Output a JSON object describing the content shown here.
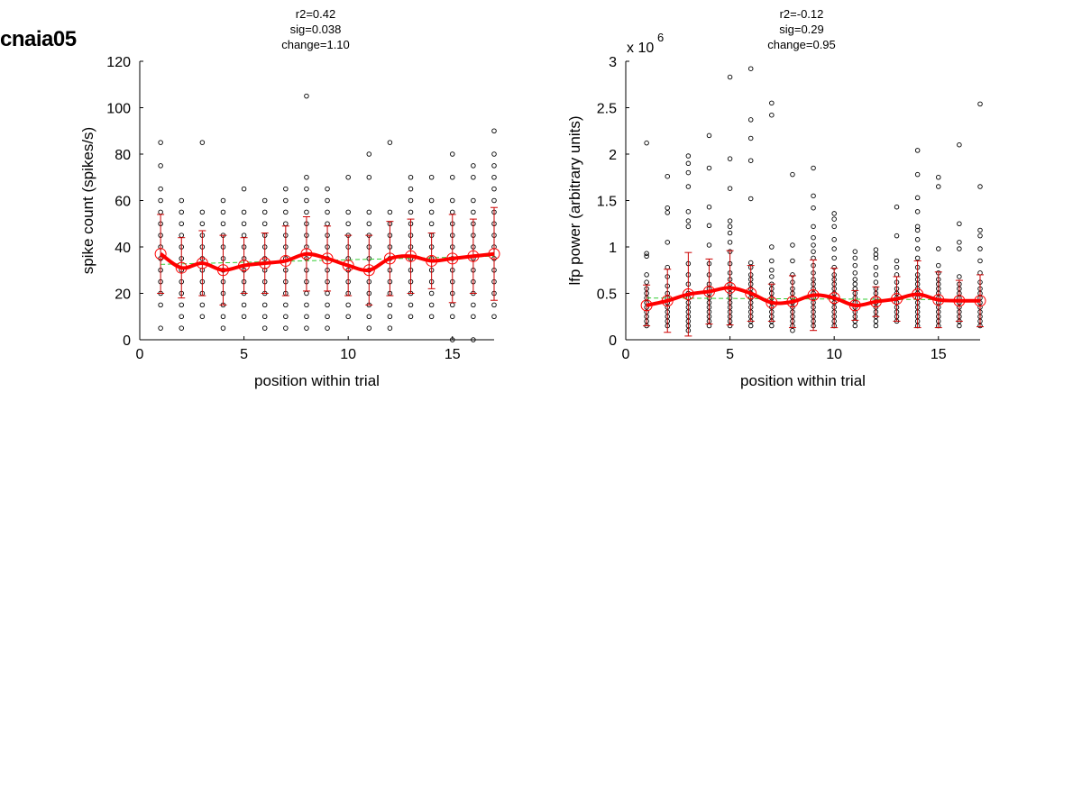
{
  "figure": {
    "label": "cnaia05"
  },
  "chart_data": [
    {
      "type": "scatter",
      "title_lines": [
        "r2=0.42",
        "sig=0.038",
        "change=1.10"
      ],
      "xlabel": "position within trial",
      "ylabel": "spike count (spikes/s)",
      "xlim": [
        0,
        17
      ],
      "ylim": [
        0,
        120
      ],
      "xticks": [
        0,
        5,
        10,
        15
      ],
      "yticks": [
        0,
        20,
        40,
        60,
        80,
        100,
        120
      ],
      "xtick_labels": [
        "0",
        "5",
        "10",
        "15"
      ],
      "ytick_labels": [
        "0",
        "20",
        "40",
        "60",
        "80",
        "100",
        "120"
      ],
      "exponent_label": "",
      "grid": false,
      "colors": {
        "points": "#000000",
        "mean": "#ff0000",
        "errorbar": "#cc0000",
        "fit": "#33cc33"
      },
      "scatter": [
        {
          "x": 1,
          "ys": [
            5,
            15,
            20,
            25,
            30,
            35,
            40,
            45,
            50,
            55,
            60,
            65,
            75,
            85
          ]
        },
        {
          "x": 2,
          "ys": [
            5,
            10,
            15,
            20,
            25,
            30,
            35,
            40,
            45,
            50,
            55,
            60
          ]
        },
        {
          "x": 3,
          "ys": [
            10,
            15,
            20,
            25,
            30,
            35,
            40,
            45,
            50,
            55,
            85
          ]
        },
        {
          "x": 4,
          "ys": [
            5,
            10,
            15,
            20,
            25,
            30,
            35,
            40,
            45,
            50,
            55,
            60
          ]
        },
        {
          "x": 5,
          "ys": [
            10,
            15,
            20,
            25,
            30,
            35,
            40,
            45,
            50,
            55,
            65
          ]
        },
        {
          "x": 6,
          "ys": [
            5,
            10,
            15,
            20,
            25,
            30,
            35,
            40,
            45,
            50,
            55,
            60
          ]
        },
        {
          "x": 7,
          "ys": [
            5,
            10,
            15,
            20,
            25,
            30,
            35,
            40,
            45,
            50,
            55,
            60,
            65
          ]
        },
        {
          "x": 8,
          "ys": [
            5,
            10,
            15,
            20,
            25,
            30,
            35,
            40,
            45,
            50,
            55,
            60,
            65,
            70,
            105
          ]
        },
        {
          "x": 9,
          "ys": [
            5,
            10,
            15,
            20,
            25,
            30,
            35,
            40,
            45,
            50,
            55,
            60,
            65
          ]
        },
        {
          "x": 10,
          "ys": [
            10,
            15,
            20,
            25,
            30,
            35,
            40,
            45,
            50,
            55,
            70
          ]
        },
        {
          "x": 11,
          "ys": [
            5,
            10,
            15,
            20,
            25,
            30,
            35,
            40,
            45,
            50,
            55,
            70,
            80
          ]
        },
        {
          "x": 12,
          "ys": [
            5,
            10,
            15,
            20,
            25,
            30,
            35,
            40,
            45,
            50,
            55,
            85
          ]
        },
        {
          "x": 13,
          "ys": [
            10,
            15,
            20,
            25,
            30,
            35,
            40,
            45,
            50,
            55,
            60,
            65,
            70
          ]
        },
        {
          "x": 14,
          "ys": [
            10,
            15,
            20,
            25,
            30,
            35,
            40,
            45,
            50,
            55,
            60,
            70
          ]
        },
        {
          "x": 15,
          "ys": [
            0,
            10,
            15,
            20,
            25,
            30,
            35,
            40,
            45,
            50,
            55,
            60,
            70,
            80
          ]
        },
        {
          "x": 16,
          "ys": [
            0,
            10,
            15,
            20,
            25,
            30,
            35,
            40,
            45,
            50,
            55,
            60,
            70,
            75
          ]
        },
        {
          "x": 17,
          "ys": [
            10,
            15,
            20,
            25,
            30,
            35,
            40,
            45,
            50,
            55,
            60,
            65,
            70,
            75,
            80,
            90
          ]
        }
      ],
      "mean": {
        "x": [
          1,
          2,
          3,
          4,
          5,
          6,
          7,
          8,
          9,
          10,
          11,
          12,
          13,
          14,
          15,
          16,
          17
        ],
        "y": [
          37,
          31,
          33,
          30,
          32,
          33,
          34,
          37,
          35,
          32,
          30,
          35,
          36,
          34,
          35,
          36,
          37
        ],
        "err": [
          17,
          13,
          14,
          15,
          12,
          13,
          15,
          16,
          14,
          13,
          15,
          16,
          16,
          12,
          19,
          16,
          20
        ]
      },
      "fit": {
        "x": [
          1,
          17
        ],
        "y": [
          32.5,
          36
        ]
      }
    },
    {
      "type": "scatter",
      "title_lines": [
        "r2=-0.12",
        "sig=0.29",
        "change=0.95"
      ],
      "xlabel": "position within trial",
      "ylabel": "lfp power (arbitrary units)",
      "xlim": [
        0,
        17
      ],
      "ylim": [
        0,
        3
      ],
      "xticks": [
        0,
        5,
        10,
        15
      ],
      "yticks": [
        0,
        0.5,
        1,
        1.5,
        2,
        2.5,
        3
      ],
      "xtick_labels": [
        "0",
        "5",
        "10",
        "15"
      ],
      "ytick_labels": [
        "0",
        "0.5",
        "1",
        "1.5",
        "2",
        "2.5",
        "3"
      ],
      "exponent_label": "x 10",
      "exponent_power": "6",
      "grid": false,
      "colors": {
        "points": "#000000",
        "mean": "#ff0000",
        "errorbar": "#cc0000",
        "fit": "#33cc33"
      },
      "scatter": [
        {
          "x": 1,
          "ys": [
            0.15,
            0.2,
            0.25,
            0.3,
            0.35,
            0.4,
            0.45,
            0.5,
            0.55,
            0.62,
            0.7,
            0.9,
            0.93,
            2.12
          ]
        },
        {
          "x": 2,
          "ys": [
            0.15,
            0.2,
            0.25,
            0.3,
            0.35,
            0.4,
            0.45,
            0.5,
            0.58,
            0.68,
            0.78,
            1.05,
            1.37,
            1.42,
            1.76
          ]
        },
        {
          "x": 3,
          "ys": [
            0.1,
            0.15,
            0.2,
            0.25,
            0.3,
            0.35,
            0.4,
            0.45,
            0.5,
            0.6,
            0.7,
            0.82,
            1.22,
            1.28,
            1.38,
            1.65,
            1.8,
            1.9,
            1.98
          ]
        },
        {
          "x": 4,
          "ys": [
            0.15,
            0.2,
            0.25,
            0.3,
            0.35,
            0.4,
            0.45,
            0.5,
            0.55,
            0.6,
            0.7,
            0.82,
            1.02,
            1.23,
            1.43,
            1.85,
            2.2
          ]
        },
        {
          "x": 5,
          "ys": [
            0.15,
            0.2,
            0.25,
            0.3,
            0.35,
            0.4,
            0.45,
            0.5,
            0.55,
            0.6,
            0.65,
            0.72,
            0.82,
            0.95,
            1.05,
            1.15,
            1.22,
            1.28,
            1.63,
            1.95,
            2.83
          ]
        },
        {
          "x": 6,
          "ys": [
            0.15,
            0.2,
            0.25,
            0.3,
            0.35,
            0.4,
            0.45,
            0.5,
            0.55,
            0.6,
            0.65,
            0.7,
            0.78,
            0.83,
            1.52,
            1.93,
            2.17,
            2.37,
            2.92
          ]
        },
        {
          "x": 7,
          "ys": [
            0.15,
            0.2,
            0.25,
            0.3,
            0.35,
            0.4,
            0.45,
            0.5,
            0.55,
            0.6,
            0.68,
            0.75,
            0.85,
            1.0,
            2.42,
            2.55
          ]
        },
        {
          "x": 8,
          "ys": [
            0.1,
            0.15,
            0.2,
            0.25,
            0.3,
            0.35,
            0.4,
            0.45,
            0.5,
            0.55,
            0.62,
            0.7,
            0.85,
            1.02,
            1.78
          ]
        },
        {
          "x": 9,
          "ys": [
            0.15,
            0.2,
            0.25,
            0.3,
            0.35,
            0.4,
            0.45,
            0.5,
            0.55,
            0.6,
            0.65,
            0.72,
            0.8,
            0.88,
            0.95,
            1.02,
            1.1,
            1.22,
            1.42,
            1.55,
            1.85
          ]
        },
        {
          "x": 10,
          "ys": [
            0.15,
            0.2,
            0.25,
            0.3,
            0.35,
            0.4,
            0.45,
            0.5,
            0.55,
            0.6,
            0.65,
            0.7,
            0.78,
            0.88,
            0.98,
            1.08,
            1.22,
            1.3,
            1.36
          ]
        },
        {
          "x": 11,
          "ys": [
            0.15,
            0.2,
            0.25,
            0.3,
            0.35,
            0.4,
            0.45,
            0.5,
            0.55,
            0.6,
            0.65,
            0.72,
            0.8,
            0.88,
            0.95
          ]
        },
        {
          "x": 12,
          "ys": [
            0.15,
            0.2,
            0.25,
            0.3,
            0.35,
            0.4,
            0.45,
            0.5,
            0.55,
            0.62,
            0.7,
            0.78,
            0.88,
            0.92,
            0.97
          ]
        },
        {
          "x": 13,
          "ys": [
            0.2,
            0.25,
            0.3,
            0.35,
            0.4,
            0.45,
            0.5,
            0.55,
            0.62,
            0.7,
            0.78,
            0.85,
            1.12,
            1.43
          ]
        },
        {
          "x": 14,
          "ys": [
            0.15,
            0.2,
            0.25,
            0.3,
            0.35,
            0.4,
            0.45,
            0.5,
            0.55,
            0.6,
            0.65,
            0.7,
            0.78,
            0.88,
            0.98,
            1.08,
            1.18,
            1.22,
            1.38,
            1.53,
            1.78,
            2.04
          ]
        },
        {
          "x": 15,
          "ys": [
            0.15,
            0.2,
            0.25,
            0.3,
            0.35,
            0.4,
            0.45,
            0.5,
            0.55,
            0.6,
            0.65,
            0.72,
            0.8,
            0.98,
            1.65,
            1.75
          ]
        },
        {
          "x": 16,
          "ys": [
            0.15,
            0.2,
            0.25,
            0.3,
            0.35,
            0.4,
            0.45,
            0.5,
            0.55,
            0.6,
            0.68,
            0.98,
            1.05,
            1.25,
            2.1
          ]
        },
        {
          "x": 17,
          "ys": [
            0.15,
            0.2,
            0.25,
            0.3,
            0.35,
            0.4,
            0.45,
            0.5,
            0.55,
            0.62,
            0.72,
            0.85,
            0.98,
            1.12,
            1.18,
            1.65,
            2.54
          ]
        }
      ],
      "mean": {
        "x": [
          1,
          2,
          3,
          4,
          5,
          6,
          7,
          8,
          9,
          10,
          11,
          12,
          13,
          14,
          15,
          16,
          17
        ],
        "y": [
          0.37,
          0.42,
          0.49,
          0.52,
          0.56,
          0.5,
          0.4,
          0.41,
          0.48,
          0.45,
          0.37,
          0.41,
          0.44,
          0.49,
          0.43,
          0.42,
          0.42
        ],
        "err": [
          0.22,
          0.34,
          0.45,
          0.35,
          0.4,
          0.3,
          0.2,
          0.28,
          0.38,
          0.32,
          0.16,
          0.16,
          0.24,
          0.36,
          0.3,
          0.22,
          0.28
        ]
      },
      "fit": {
        "x": [
          1,
          17
        ],
        "y": [
          0.45,
          0.43
        ]
      }
    }
  ]
}
